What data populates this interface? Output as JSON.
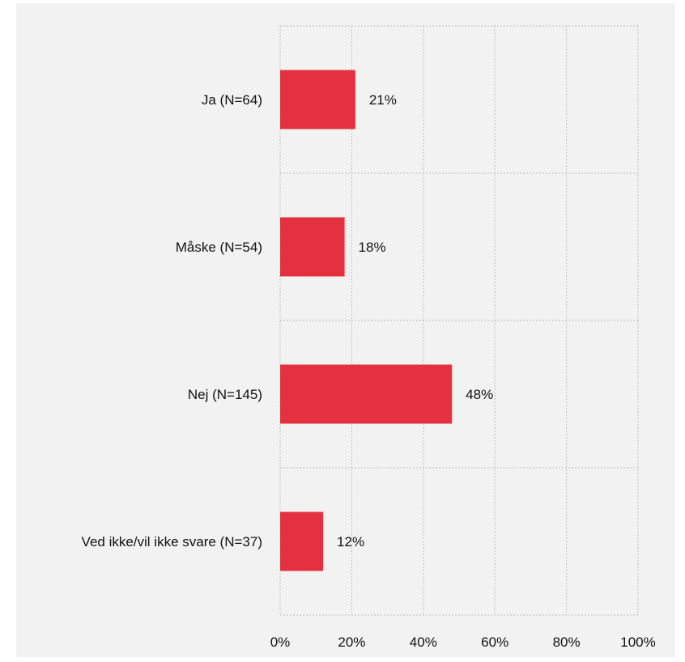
{
  "chart_data": {
    "type": "bar",
    "orientation": "horizontal",
    "categories": [
      "Ja (N=64)",
      "Måske (N=54)",
      "Nej (N=145)",
      "Ved ikke/vil ikke svare (N=37)"
    ],
    "values": [
      21,
      18,
      48,
      12
    ],
    "value_labels": [
      "21%",
      "18%",
      "48%",
      "12%"
    ],
    "x_ticks": [
      "0%",
      "20%",
      "40%",
      "60%",
      "80%",
      "100%"
    ],
    "xlim": [
      0,
      100
    ],
    "grid": true,
    "legend": "none",
    "bar_color": "#e3313f",
    "grid_color": "#bfbfbf",
    "background_color": "#f2f2f2"
  }
}
